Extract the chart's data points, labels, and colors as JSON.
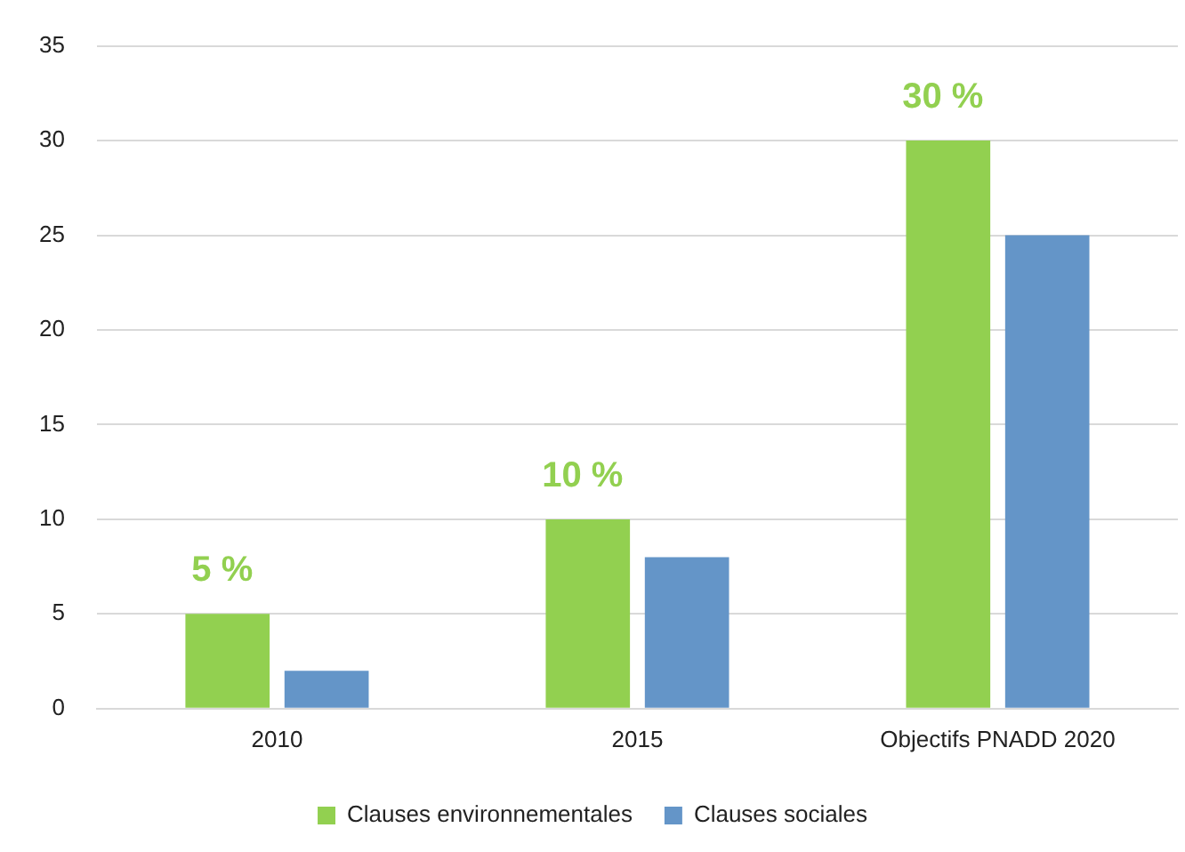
{
  "chart_data": {
    "type": "bar",
    "categories": [
      "2010",
      "2015",
      "Objectifs PNADD 2020"
    ],
    "series": [
      {
        "name": "Clauses environnementales",
        "color": "#92d050",
        "values": [
          5,
          10,
          30
        ],
        "value_labels": [
          "5 %",
          "10 %",
          "30 %"
        ]
      },
      {
        "name": "Clauses sociales",
        "color": "#6495c8",
        "values": [
          2,
          8,
          25
        ]
      }
    ],
    "ylim": [
      0,
      35
    ],
    "yticks": [
      0,
      5,
      10,
      15,
      20,
      25,
      30,
      35
    ],
    "grid": "y",
    "legend": "bottom"
  }
}
